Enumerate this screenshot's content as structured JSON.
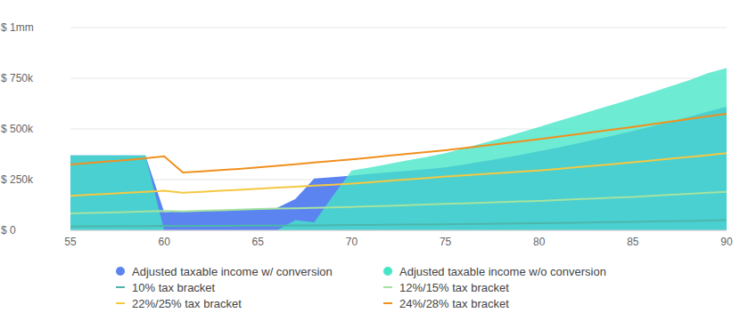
{
  "chart_data": {
    "type": "area",
    "x": [
      55,
      56,
      57,
      58,
      59,
      60,
      61,
      62,
      63,
      64,
      65,
      66,
      67,
      68,
      69,
      70,
      71,
      72,
      73,
      74,
      75,
      76,
      77,
      78,
      79,
      80,
      81,
      82,
      83,
      84,
      85,
      86,
      87,
      88,
      89,
      90
    ],
    "xlim": [
      55,
      90
    ],
    "xticks": [
      55,
      60,
      65,
      70,
      75,
      80,
      85,
      90
    ],
    "ylim": [
      0,
      1000000
    ],
    "yticks": [
      {
        "value": 0,
        "label": "$ 0"
      },
      {
        "value": 250000,
        "label": "$ 250k"
      },
      {
        "value": 500000,
        "label": "$ 500k"
      },
      {
        "value": 750000,
        "label": "$ 750k"
      },
      {
        "value": 1000000,
        "label": "$ 1mm"
      }
    ],
    "grid": true,
    "legend": "bottom",
    "series": [
      {
        "name": "Adjusted taxable income w/ conversion",
        "type": "area",
        "color": "#5b84f0",
        "values": [
          370000,
          370000,
          370000,
          370000,
          370000,
          90000,
          95000,
          97000,
          100000,
          102000,
          105000,
          110000,
          155000,
          255000,
          262000,
          270000,
          278000,
          286000,
          294000,
          302000,
          310000,
          325000,
          340000,
          355000,
          372000,
          390000,
          408000,
          428000,
          448000,
          468000,
          490000,
          512000,
          535000,
          560000,
          585000,
          610000
        ]
      },
      {
        "name": "Adjusted taxable income w/o conversion",
        "type": "area",
        "color": "#45e6c6",
        "values": [
          370000,
          370000,
          370000,
          370000,
          370000,
          0,
          0,
          0,
          0,
          0,
          0,
          0,
          50000,
          40000,
          170000,
          295000,
          310000,
          328000,
          345000,
          362000,
          380000,
          405000,
          430000,
          455000,
          482000,
          510000,
          538000,
          566000,
          594000,
          622000,
          650000,
          680000,
          710000,
          740000,
          775000,
          800000
        ]
      },
      {
        "name": "10% tax bracket",
        "type": "line",
        "color": "#4db6ac",
        "values": [
          19000,
          19500,
          20000,
          20500,
          21000,
          21500,
          21000,
          21500,
          22000,
          22500,
          23000,
          23500,
          24000,
          24500,
          25000,
          26000,
          26500,
          27000,
          28000,
          29000,
          30000,
          31000,
          32000,
          33000,
          34000,
          35000,
          36000,
          37500,
          39000,
          40500,
          42000,
          43500,
          45000,
          46500,
          48000,
          50000
        ]
      },
      {
        "name": "12%/15% tax bracket",
        "type": "line",
        "color": "#a5e3a0",
        "values": [
          83000,
          85000,
          88000,
          90000,
          93000,
          95000,
          93000,
          96000,
          99000,
          102000,
          105000,
          107000,
          109000,
          111000,
          113000,
          115000,
          118000,
          121000,
          124000,
          127000,
          130000,
          133000,
          136000,
          139000,
          142000,
          145000,
          149000,
          153000,
          157000,
          161000,
          165000,
          170000,
          175000,
          180000,
          185000,
          190000
        ]
      },
      {
        "name": "22%/25% tax bracket",
        "type": "line",
        "color": "#f5c842",
        "values": [
          170000,
          175000,
          180000,
          185000,
          190000,
          195000,
          185000,
          190000,
          195000,
          200000,
          205000,
          210000,
          215000,
          220000,
          225000,
          230000,
          237000,
          244000,
          251000,
          258000,
          265000,
          271000,
          277000,
          283000,
          289000,
          295000,
          303000,
          311000,
          319000,
          327000,
          335000,
          344000,
          353000,
          362000,
          371000,
          380000
        ]
      },
      {
        "name": "24%/28% tax bracket",
        "type": "line",
        "color": "#f0901e",
        "values": [
          325000,
          332000,
          340000,
          347000,
          355000,
          365000,
          285000,
          291000,
          297000,
          303000,
          310000,
          318000,
          326000,
          334000,
          342000,
          350000,
          359000,
          368000,
          377000,
          386000,
          395000,
          406000,
          417000,
          428000,
          439000,
          450000,
          462000,
          474000,
          486000,
          498000,
          510000,
          523000,
          536000,
          549000,
          562000,
          575000
        ]
      }
    ]
  }
}
